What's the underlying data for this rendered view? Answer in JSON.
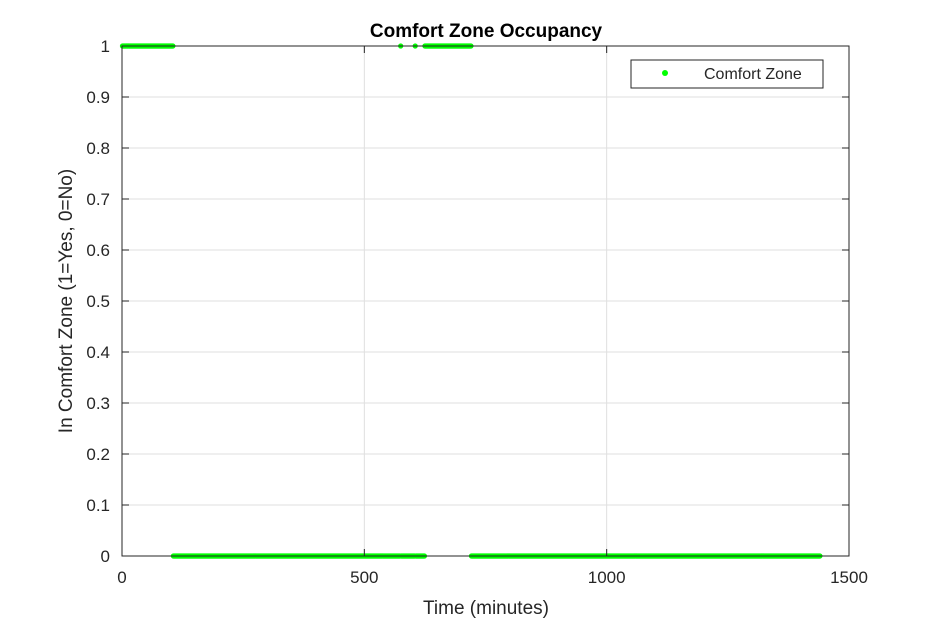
{
  "chart_data": {
    "type": "scatter",
    "title": "Comfort Zone Occupancy",
    "xlabel": "Time (minutes)",
    "ylabel": "In Comfort Zone (1=Yes, 0=No)",
    "xlim": [
      0,
      1500
    ],
    "ylim": [
      0,
      1
    ],
    "xticks": [
      "0",
      "500",
      "1000",
      "1500"
    ],
    "yticks": [
      "0",
      "0.1",
      "0.2",
      "0.3",
      "0.4",
      "0.5",
      "0.6",
      "0.7",
      "0.8",
      "0.9",
      "1"
    ],
    "grid": true,
    "legend_position": "top-right",
    "marker_color": "#00ff00",
    "series": [
      {
        "name": "Comfort Zone",
        "sampling_interval_minutes": 1,
        "x_range": [
          1,
          1440
        ],
        "value_one_intervals": [
          [
            1,
            105
          ],
          [
            575,
            575
          ],
          [
            605,
            605
          ],
          [
            625,
            720
          ]
        ],
        "default_value": 0
      }
    ]
  }
}
